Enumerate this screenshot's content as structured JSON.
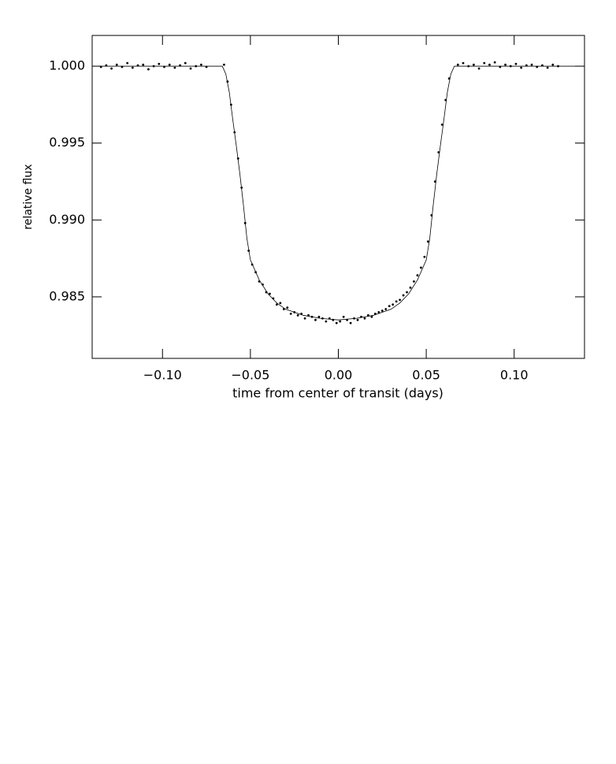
{
  "chart_data": {
    "type": "scatter",
    "x_label": "time from center of transit (days)",
    "y_label": "relative flux",
    "xlim": [
      -0.14,
      0.14
    ],
    "ylim": [
      0.981,
      1.002
    ],
    "xticks": [
      {
        "value": -0.1,
        "label": "−0.10"
      },
      {
        "value": -0.05,
        "label": "−0.05"
      },
      {
        "value": 0,
        "label": "0.00"
      },
      0.05,
      {
        "value": 0.1,
        "label": "0.10"
      }
    ],
    "yticks": [
      0.985,
      {
        "value": 0.99,
        "label": "0.990"
      },
      0.995,
      {
        "value": 1,
        "label": "1.000"
      }
    ],
    "color": "#000000",
    "points": {
      "x": [
        -0.135,
        -0.132,
        -0.129,
        -0.126,
        -0.123,
        -0.12,
        -0.117,
        -0.114,
        -0.111,
        -0.108,
        -0.105,
        -0.102,
        -0.099,
        -0.096,
        -0.093,
        -0.09,
        -0.087,
        -0.084,
        -0.081,
        -0.078,
        -0.075,
        -0.065,
        -0.063,
        -0.061,
        -0.059,
        -0.057,
        -0.055,
        -0.053,
        -0.051,
        -0.049,
        -0.047,
        -0.045,
        -0.043,
        -0.041,
        -0.039,
        -0.037,
        -0.035,
        -0.033,
        -0.031,
        -0.029,
        -0.027,
        -0.025,
        -0.023,
        -0.021,
        -0.019,
        -0.017,
        -0.015,
        -0.013,
        -0.011,
        -0.009,
        -0.007,
        -0.005,
        -0.003,
        -0.001,
        0.001,
        0.003,
        0.005,
        0.007,
        0.009,
        0.011,
        0.013,
        0.015,
        0.017,
        0.019,
        0.021,
        0.023,
        0.025,
        0.027,
        0.029,
        0.031,
        0.033,
        0.035,
        0.037,
        0.039,
        0.041,
        0.043,
        0.045,
        0.047,
        0.049,
        0.051,
        0.053,
        0.055,
        0.057,
        0.059,
        0.061,
        0.063,
        0.068,
        0.071,
        0.074,
        0.077,
        0.08,
        0.083,
        0.086,
        0.089,
        0.092,
        0.095,
        0.098,
        0.101,
        0.104,
        0.107,
        0.11,
        0.113,
        0.116,
        0.119,
        0.122,
        0.125
      ],
      "values": [
        0.99995,
        1.00005,
        0.99985,
        1.0001,
        0.99995,
        1.0002,
        0.9999,
        1.00005,
        1.0001,
        0.9998,
        1.0,
        1.00015,
        0.99995,
        1.0001,
        0.9999,
        1.00005,
        1.0002,
        0.99985,
        1.0,
        1.0001,
        0.99995,
        1.0001,
        0.999,
        0.9975,
        0.9957,
        0.994,
        0.9921,
        0.9898,
        0.988,
        0.9871,
        0.9866,
        0.986,
        0.9858,
        0.9853,
        0.9852,
        0.9849,
        0.9845,
        0.9846,
        0.9842,
        0.9843,
        0.9839,
        0.984,
        0.9838,
        0.9839,
        0.9836,
        0.9838,
        0.9837,
        0.9835,
        0.9837,
        0.9836,
        0.9834,
        0.9836,
        0.9835,
        0.9833,
        0.9834,
        0.9837,
        0.9835,
        0.9833,
        0.9836,
        0.9835,
        0.9837,
        0.9836,
        0.9838,
        0.9837,
        0.9839,
        0.984,
        0.9841,
        0.9842,
        0.9844,
        0.9845,
        0.9847,
        0.9848,
        0.9851,
        0.9853,
        0.9856,
        0.986,
        0.9864,
        0.9869,
        0.9876,
        0.9886,
        0.9903,
        0.9925,
        0.9944,
        0.9962,
        0.9978,
        0.9992,
        1.0001,
        1.0002,
        1.0,
        1.0001,
        0.99985,
        1.0002,
        1.0001,
        1.00025,
        0.99995,
        1.0001,
        1.0,
        1.00015,
        0.9999,
        1.00005,
        1.0001,
        0.99995,
        1.00005,
        0.9999,
        1.0001,
        1.0
      ]
    },
    "model": {
      "x": [
        -0.14,
        -0.066,
        -0.064,
        -0.062,
        -0.06,
        -0.058,
        -0.056,
        -0.054,
        -0.052,
        -0.05,
        -0.045,
        -0.04,
        -0.035,
        -0.03,
        -0.02,
        -0.01,
        0,
        0.01,
        0.02,
        0.03,
        0.035,
        0.04,
        0.045,
        0.05,
        0.052,
        0.054,
        0.056,
        0.058,
        0.06,
        0.062,
        0.064,
        0.066,
        0.14
      ],
      "values": [
        1.0,
        1.0,
        0.9995,
        0.9983,
        0.9965,
        0.9948,
        0.993,
        0.991,
        0.9888,
        0.9874,
        0.9861,
        0.9852,
        0.9846,
        0.9842,
        0.9838,
        0.9836,
        0.9835,
        0.9836,
        0.9838,
        0.9842,
        0.9846,
        0.9852,
        0.9861,
        0.9874,
        0.9888,
        0.991,
        0.993,
        0.9948,
        0.9965,
        0.9983,
        0.9995,
        1.0,
        1.0
      ]
    }
  }
}
